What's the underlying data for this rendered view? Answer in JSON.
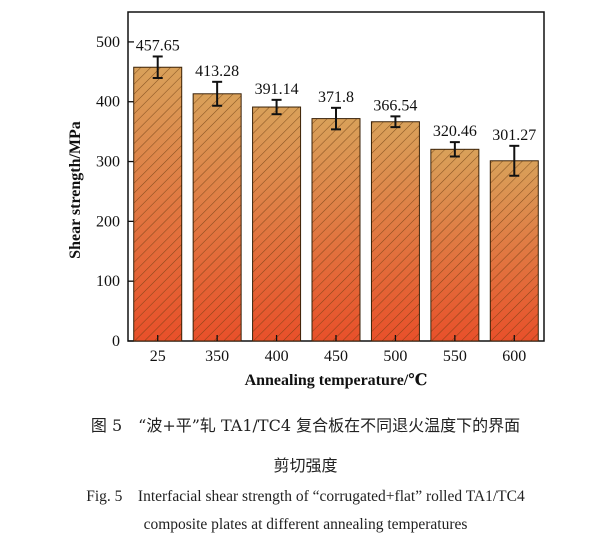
{
  "chart_data": {
    "type": "bar",
    "xlabel": "Annealing temperature/℃",
    "ylabel": "Shear strength/MPa",
    "ylim": [
      0,
      550
    ],
    "yticks": [
      0,
      100,
      200,
      300,
      400,
      500
    ],
    "categories": [
      "25",
      "350",
      "400",
      "450",
      "500",
      "550",
      "600"
    ],
    "values": [
      457.65,
      413.28,
      391.14,
      371.8,
      366.54,
      320.46,
      301.27
    ],
    "value_labels": [
      "457.65",
      "413.28",
      "391.14",
      "371.8",
      "366.54",
      "320.46",
      "301.27"
    ],
    "errors": [
      18,
      20,
      12,
      18,
      9,
      12,
      25
    ],
    "bar_fill": "diagonal hatch, gradient orange-red to tan",
    "colors": {
      "bar_bottom": "#e8502a",
      "bar_top": "#d9a15a",
      "hatch": "#6b3a10",
      "error_bar": "#111111"
    },
    "grid": false
  },
  "caption": {
    "cn_line1": "图 5　“波+平”轧 TA1/TC4 复合板在不同退火温度下的界面",
    "cn_line2": "剪切强度",
    "en_line1": "Fig. 5　Interfacial shear strength of “corrugated+flat” rolled TA1/TC4",
    "en_line2": "composite plates at different annealing temperatures"
  }
}
